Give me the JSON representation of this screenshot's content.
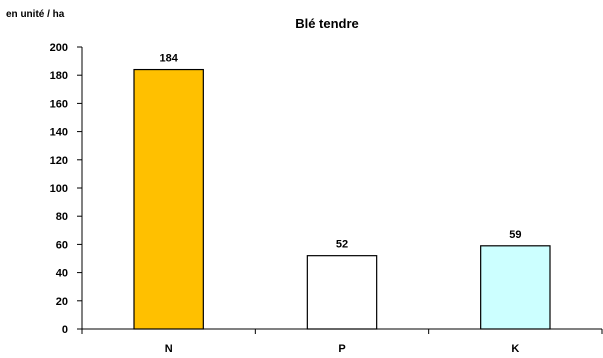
{
  "chart_data": {
    "type": "bar",
    "title": "Blé tendre",
    "ylabel": "en unité / ha",
    "xlabel": "",
    "categories": [
      "N",
      "P",
      "K"
    ],
    "values": [
      184,
      52,
      59
    ],
    "data_labels": [
      "184",
      "52",
      "59"
    ],
    "bar_colors": [
      "#FFC000",
      "#FFFFFF",
      "#CCFFFF"
    ],
    "ylim": [
      0,
      200
    ],
    "yticks": [
      0,
      20,
      40,
      60,
      80,
      100,
      120,
      140,
      160,
      180,
      200
    ],
    "grid": false,
    "legend": "none"
  }
}
